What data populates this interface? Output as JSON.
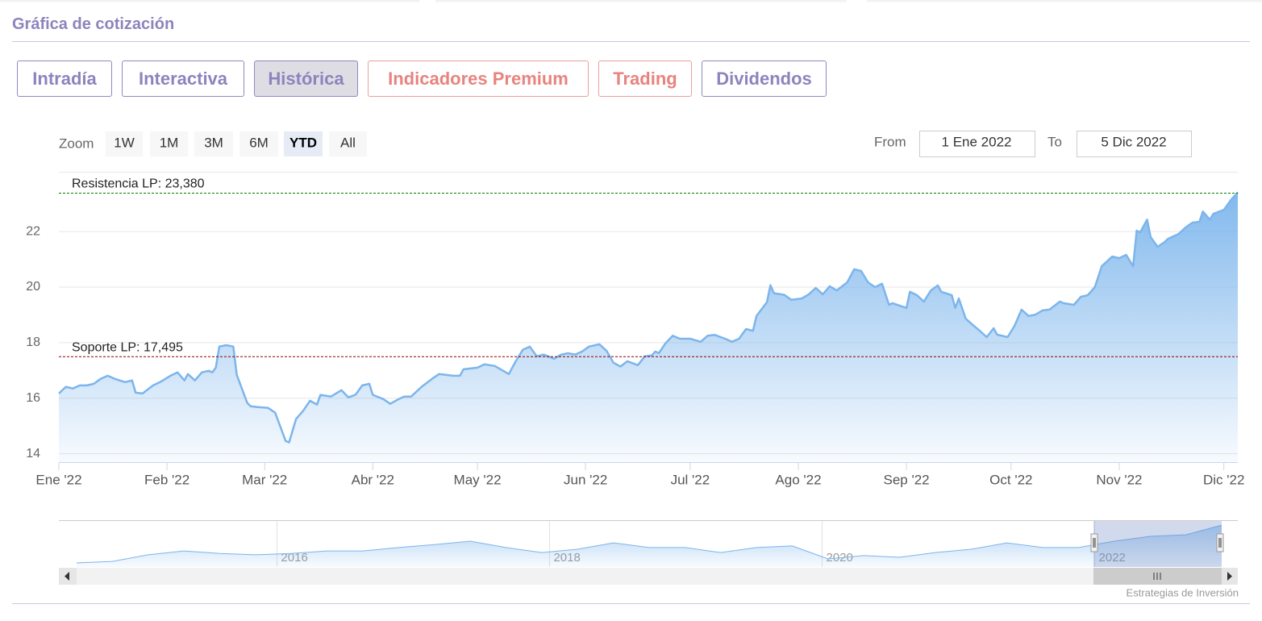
{
  "header": {
    "title": "Gráfica de cotización"
  },
  "tabs": [
    {
      "label": "Intradía"
    },
    {
      "label": "Interactiva"
    },
    {
      "label": "Histórica"
    },
    {
      "label": "Indicadores Premium"
    },
    {
      "label": "Trading"
    },
    {
      "label": "Dividendos"
    }
  ],
  "zoom": {
    "label": "Zoom",
    "buttons": [
      "1W",
      "1M",
      "3M",
      "6M",
      "YTD",
      "All"
    ]
  },
  "range": {
    "from_label": "From",
    "from": "1 Ene 2022",
    "to_label": "To",
    "to": "5 Dic 2022"
  },
  "credits": "Estrategias de Inversión",
  "chart_data": {
    "type": "area",
    "xlim": [
      "2022-01-01",
      "2022-12-05"
    ],
    "ylim": [
      13.7,
      24.15
    ],
    "yticks": [
      14,
      16,
      18,
      20,
      22
    ],
    "grid": true,
    "xticks": [
      {
        "value": "2022-01-01",
        "label": "Ene '22"
      },
      {
        "value": "2022-02-01",
        "label": "Feb '22"
      },
      {
        "value": "2022-03-01",
        "label": "Mar '22"
      },
      {
        "value": "2022-04-01",
        "label": "Abr '22"
      },
      {
        "value": "2022-05-01",
        "label": "May '22"
      },
      {
        "value": "2022-06-01",
        "label": "Jun '22"
      },
      {
        "value": "2022-07-01",
        "label": "Jul '22"
      },
      {
        "value": "2022-08-01",
        "label": "Ago '22"
      },
      {
        "value": "2022-09-01",
        "label": "Sep '22"
      },
      {
        "value": "2022-10-01",
        "label": "Oct '22"
      },
      {
        "value": "2022-11-01",
        "label": "Nov '22"
      },
      {
        "value": "2022-12-01",
        "label": "Dic '22"
      }
    ],
    "plot_lines": [
      {
        "label": "Resistencia LP: 23,380",
        "value": 23.38,
        "color": "#008000"
      },
      {
        "label": "Soporte LP: 17,495",
        "value": 17.495,
        "color": "#8b0000"
      }
    ],
    "series": [
      {
        "color": "#7cb5ec",
        "x": [
          "2022-01-01",
          "2022-01-03",
          "2022-01-05",
          "2022-01-07",
          "2022-01-09",
          "2022-01-11",
          "2022-01-13",
          "2022-01-15",
          "2022-01-17",
          "2022-01-20",
          "2022-01-22",
          "2022-01-23",
          "2022-01-25",
          "2022-01-28",
          "2022-01-30",
          "2022-02-02",
          "2022-02-04",
          "2022-02-06",
          "2022-02-07",
          "2022-02-09",
          "2022-02-11",
          "2022-02-13",
          "2022-02-14",
          "2022-02-15",
          "2022-02-16",
          "2022-02-18",
          "2022-02-20",
          "2022-02-21",
          "2022-02-24",
          "2022-02-25",
          "2022-02-27",
          "2022-03-02",
          "2022-03-04",
          "2022-03-06",
          "2022-03-07",
          "2022-03-08",
          "2022-03-10",
          "2022-03-12",
          "2022-03-14",
          "2022-03-16",
          "2022-03-17",
          "2022-03-20",
          "2022-03-23",
          "2022-03-25",
          "2022-03-27",
          "2022-03-29",
          "2022-03-31",
          "2022-04-01",
          "2022-04-04",
          "2022-04-06",
          "2022-04-08",
          "2022-04-10",
          "2022-04-12",
          "2022-04-15",
          "2022-04-18",
          "2022-04-20",
          "2022-04-24",
          "2022-04-26",
          "2022-04-27",
          "2022-05-01",
          "2022-05-03",
          "2022-05-06",
          "2022-05-10",
          "2022-05-12",
          "2022-05-14",
          "2022-05-16",
          "2022-05-18",
          "2022-05-20",
          "2022-05-23",
          "2022-05-25",
          "2022-05-27",
          "2022-05-29",
          "2022-05-31",
          "2022-06-02",
          "2022-06-05",
          "2022-06-07",
          "2022-06-09",
          "2022-06-11",
          "2022-06-13",
          "2022-06-16",
          "2022-06-18",
          "2022-06-20",
          "2022-06-21",
          "2022-06-22",
          "2022-06-24",
          "2022-06-26",
          "2022-06-28",
          "2022-07-01",
          "2022-07-04",
          "2022-07-06",
          "2022-07-08",
          "2022-07-11",
          "2022-07-13",
          "2022-07-15",
          "2022-07-17",
          "2022-07-19",
          "2022-07-20",
          "2022-07-23",
          "2022-07-24",
          "2022-07-25",
          "2022-07-28",
          "2022-07-30",
          "2022-08-02",
          "2022-08-04",
          "2022-08-06",
          "2022-08-08",
          "2022-08-10",
          "2022-08-12",
          "2022-08-15",
          "2022-08-17",
          "2022-08-19",
          "2022-08-21",
          "2022-08-23",
          "2022-08-25",
          "2022-08-27",
          "2022-08-28",
          "2022-09-01",
          "2022-09-02",
          "2022-09-04",
          "2022-09-06",
          "2022-09-08",
          "2022-09-10",
          "2022-09-11",
          "2022-09-14",
          "2022-09-15",
          "2022-09-16",
          "2022-09-18",
          "2022-09-20",
          "2022-09-22",
          "2022-09-24",
          "2022-09-26",
          "2022-09-27",
          "2022-09-30",
          "2022-10-02",
          "2022-10-04",
          "2022-10-06",
          "2022-10-08",
          "2022-10-10",
          "2022-10-12",
          "2022-10-15",
          "2022-10-16",
          "2022-10-19",
          "2022-10-21",
          "2022-10-23",
          "2022-10-25",
          "2022-10-27",
          "2022-10-30",
          "2022-11-01",
          "2022-11-03",
          "2022-11-05",
          "2022-11-06",
          "2022-11-07",
          "2022-11-09",
          "2022-11-10",
          "2022-11-12",
          "2022-11-14",
          "2022-11-15",
          "2022-11-18",
          "2022-11-20",
          "2022-11-22",
          "2022-11-24",
          "2022-11-25",
          "2022-11-27",
          "2022-11-28",
          "2022-12-01",
          "2022-12-03",
          "2022-12-05"
        ],
        "values": [
          16.17,
          16.41,
          16.35,
          16.46,
          16.46,
          16.52,
          16.7,
          16.81,
          16.7,
          16.58,
          16.64,
          16.2,
          16.17,
          16.46,
          16.58,
          16.81,
          16.93,
          16.64,
          16.87,
          16.64,
          16.93,
          16.99,
          16.93,
          17.1,
          17.86,
          17.91,
          17.86,
          16.84,
          15.83,
          15.71,
          15.68,
          15.65,
          15.48,
          14.81,
          14.46,
          14.41,
          15.25,
          15.54,
          15.91,
          15.77,
          16.12,
          16.06,
          16.29,
          16.03,
          16.12,
          16.46,
          16.52,
          16.12,
          15.97,
          15.8,
          15.94,
          16.06,
          16.06,
          16.41,
          16.7,
          16.87,
          16.81,
          16.81,
          17.04,
          17.1,
          17.22,
          17.16,
          16.87,
          17.33,
          17.74,
          17.86,
          17.51,
          17.57,
          17.42,
          17.57,
          17.62,
          17.57,
          17.68,
          17.86,
          17.94,
          17.71,
          17.28,
          17.14,
          17.33,
          17.19,
          17.51,
          17.54,
          17.68,
          17.62,
          17.99,
          18.25,
          18.14,
          18.14,
          18.03,
          18.25,
          18.28,
          18.14,
          18.03,
          18.14,
          18.49,
          18.43,
          18.96,
          19.46,
          20.07,
          19.78,
          19.72,
          19.54,
          19.59,
          19.74,
          19.97,
          19.74,
          20.03,
          19.88,
          20.17,
          20.64,
          20.58,
          20.17,
          20.0,
          20.12,
          19.36,
          19.42,
          19.25,
          19.83,
          19.71,
          19.48,
          19.88,
          20.06,
          19.83,
          19.71,
          19.25,
          19.59,
          18.86,
          18.64,
          18.43,
          18.2,
          18.52,
          18.29,
          18.2,
          18.61,
          19.19,
          18.96,
          19.01,
          19.16,
          19.19,
          19.48,
          19.42,
          19.36,
          19.65,
          19.71,
          20.0,
          20.75,
          21.1,
          21.04,
          21.16,
          20.75,
          22.03,
          21.97,
          22.43,
          21.8,
          21.45,
          21.62,
          21.74,
          21.91,
          22.14,
          22.32,
          22.35,
          22.72,
          22.43,
          22.64,
          22.78,
          23.13,
          23.41
        ]
      }
    ]
  },
  "navigator": {
    "xlim": [
      2014.4,
      2023.05
    ],
    "xticks": [
      2016,
      2018,
      2020,
      2022
    ],
    "ylim": [
      8,
      24
    ],
    "values": [
      9.45,
      10.0,
      12.4,
      13.8,
      12.9,
      12.4,
      12.9,
      13.8,
      13.8,
      15.0,
      16.1,
      17.3,
      15.0,
      13.2,
      14.4,
      16.7,
      15.0,
      15.0,
      13.2,
      15.0,
      15.6,
      10.9,
      12.1,
      11.5,
      13.2,
      14.4,
      16.7,
      15.0,
      15.0,
      17.3,
      19.05,
      19.6,
      23.1
    ]
  }
}
